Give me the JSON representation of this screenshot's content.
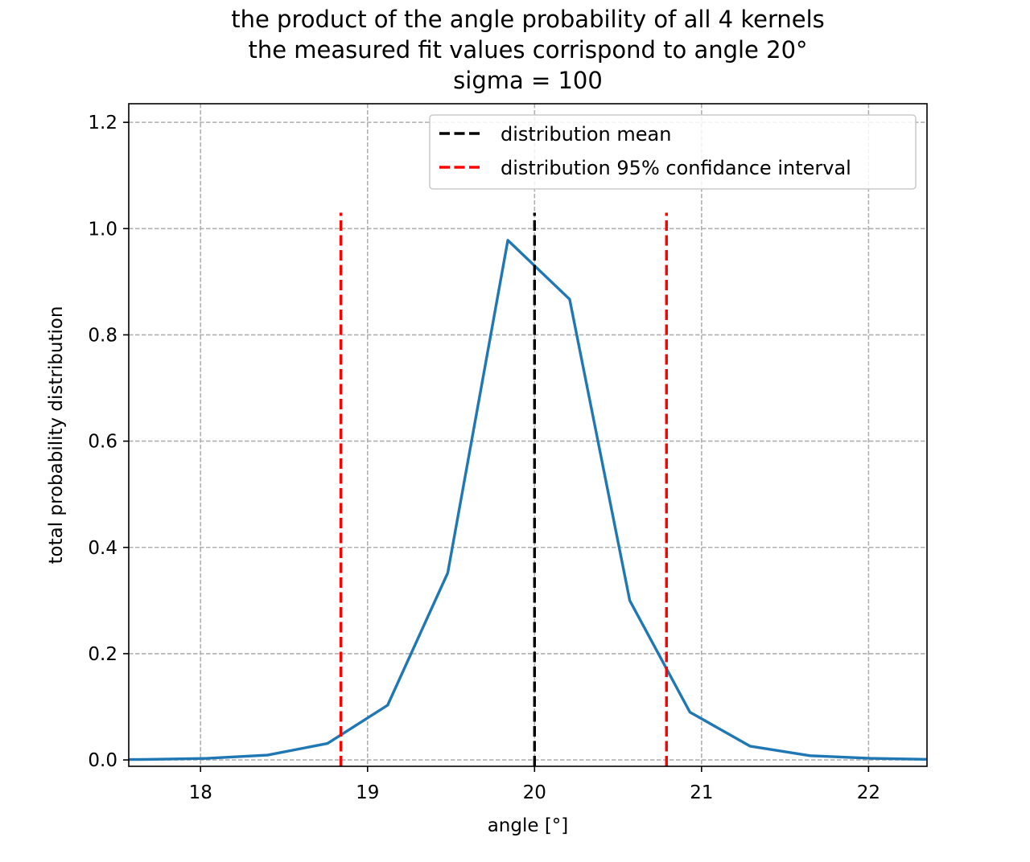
{
  "chart_data": {
    "type": "line",
    "title_lines": [
      "the product of the angle probability of all 4 kernels",
      "the measured fit values corrispond to angle 20°",
      "sigma = 100"
    ],
    "xlabel": "angle [°]",
    "ylabel": "total probability distribution",
    "xlim": [
      17.57,
      22.35
    ],
    "ylim": [
      -0.012,
      1.235
    ],
    "grid": true,
    "legend_position": "upper right",
    "x_ticks": [
      18,
      19,
      20,
      21,
      22
    ],
    "y_ticks": [
      0.0,
      0.2,
      0.4,
      0.6,
      0.8,
      1.0,
      1.2
    ],
    "x_tick_labels": [
      "18",
      "19",
      "20",
      "21",
      "22"
    ],
    "y_tick_labels": [
      "0.0",
      "0.2",
      "0.4",
      "0.6",
      "0.8",
      "1.0",
      "1.2"
    ],
    "series": [
      {
        "color": "#1f77b4",
        "x": [
          17.3,
          17.67,
          18.04,
          18.4,
          18.76,
          19.12,
          19.48,
          19.84,
          20.21,
          20.57,
          20.93,
          21.29,
          21.65,
          22.01,
          22.37
        ],
        "y": [
          0.0,
          0.001,
          0.003,
          0.009,
          0.031,
          0.103,
          0.352,
          0.978,
          0.867,
          0.3,
          0.09,
          0.026,
          0.008,
          0.003,
          0.001
        ]
      }
    ],
    "vlines": [
      {
        "legend": "distribution mean",
        "x": 20.0,
        "y_range": [
          -0.012,
          1.03
        ],
        "color": "#000000",
        "style": "dashed"
      },
      {
        "legend": "distribution 95% confidance interval",
        "x": 18.84,
        "y_range": [
          -0.012,
          1.03
        ],
        "color": "#ff0000",
        "style": "dashed"
      },
      {
        "x": 20.79,
        "y_range": [
          -0.012,
          1.03
        ],
        "color": "#ff0000",
        "style": "dashed"
      }
    ],
    "legend": [
      {
        "label": "distribution mean",
        "color": "#000000",
        "style": "dashed"
      },
      {
        "label": "distribution 95% confidance interval",
        "color": "#ff0000",
        "style": "dashed"
      }
    ]
  }
}
